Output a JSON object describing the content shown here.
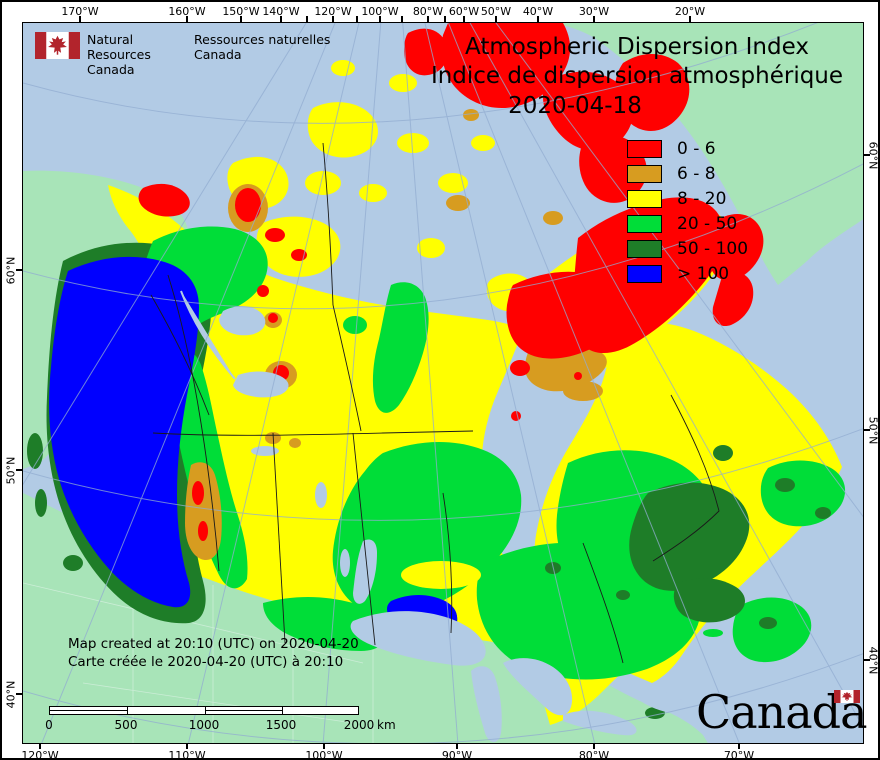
{
  "branding": {
    "flag_icon": "canada-flag",
    "nrcan_en_line1": "Natural Resources",
    "nrcan_en_line2": "Canada",
    "nrcan_fr_line1": "Ressources naturelles",
    "nrcan_fr_line2": "Canada",
    "wordmark": "Canada"
  },
  "title": {
    "en": "Atmospheric Dispersion Index",
    "fr": "Indice de dispersion atmosphérique",
    "date": "2020-04-18"
  },
  "legend": {
    "items": [
      {
        "label": "0 - 6",
        "color": "#FF0000"
      },
      {
        "label": "6 - 8",
        "color": "#D79C20"
      },
      {
        "label": "8 - 20",
        "color": "#FFFF00"
      },
      {
        "label": "20 - 50",
        "color": "#00DD38"
      },
      {
        "label": "50 - 100",
        "color": "#1E7D28"
      },
      {
        "label": "> 100",
        "color": "#0000FF"
      }
    ]
  },
  "footer": {
    "created_en": "Map created at 20:10 (UTC) on 2020-04-20",
    "created_fr": "Carte créée le 2020-04-20 (UTC) à 20:10"
  },
  "scalebar": {
    "labels": [
      "0",
      "500",
      "1000",
      "1500",
      "2000"
    ],
    "unit": "km"
  },
  "graticule_labels": {
    "top": [
      "170°W",
      "160°W",
      "150°W",
      "140°W",
      "120°W",
      "100°W",
      "80°W",
      "60°W",
      "50°W",
      "40°W",
      "30°W",
      "20°W"
    ],
    "bottom": [
      "120°W",
      "110°W",
      "100°W",
      "90°W",
      "80°W",
      "70°W"
    ],
    "left": [
      "60°N",
      "50°N",
      "40°N"
    ],
    "right": [
      "60°N",
      "50°N",
      "40°N"
    ]
  },
  "map_colors": {
    "ocean": "#B2CBE5",
    "foreign_land": "#A8E4B8",
    "adi_0_6": "#FF0000",
    "adi_6_8": "#D79C20",
    "adi_8_20": "#FFFF00",
    "adi_20_50": "#00DD38",
    "adi_50_100": "#1E7D28",
    "adi_over_100": "#0000FF",
    "graticule": "#92ADD1",
    "flag_red": "#B2242C",
    "wordmark_flag_red": "#D52B1E"
  }
}
